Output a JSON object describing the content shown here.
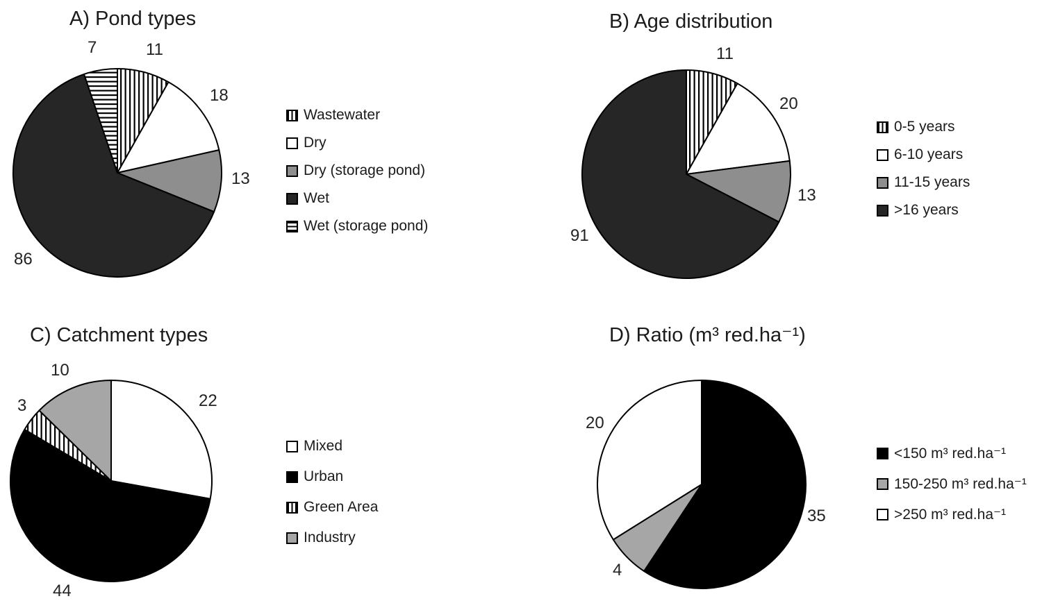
{
  "figure": {
    "background": "#ffffff",
    "stroke_color": "#000000",
    "text_color": "#1b1b1b"
  },
  "chart_data": [
    {
      "type": "pie",
      "panel": "A",
      "title": "A) Pond types",
      "start_angle": "top",
      "direction": "clockwise",
      "legend_position": "right",
      "total": 135,
      "slices": [
        {
          "label": "Wastewater",
          "value": 11,
          "fill": "vstripe"
        },
        {
          "label": "Dry",
          "value": 18,
          "fill": "#ffffff"
        },
        {
          "label": "Dry (storage pond)",
          "value": 13,
          "fill": "#8e8e8e"
        },
        {
          "label": "Wet",
          "value": 86,
          "fill": "#262626"
        },
        {
          "label": "Wet (storage pond)",
          "value": 7,
          "fill": "hstripe"
        }
      ]
    },
    {
      "type": "pie",
      "panel": "B",
      "title": "B) Age distribution",
      "start_angle": "top",
      "direction": "clockwise",
      "legend_position": "right",
      "total": 135,
      "slices": [
        {
          "label": "0-5 years",
          "value": 11,
          "fill": "vstripe"
        },
        {
          "label": "6-10 years",
          "value": 20,
          "fill": "#ffffff"
        },
        {
          "label": "11-15 years",
          "value": 13,
          "fill": "#8e8e8e"
        },
        {
          "label": ">16 years",
          "value": 91,
          "fill": "#262626"
        }
      ]
    },
    {
      "type": "pie",
      "panel": "C",
      "title": "C) Catchment types",
      "start_angle": "top",
      "direction": "clockwise",
      "legend_position": "right",
      "total": 79,
      "slices": [
        {
          "label": "Mixed",
          "value": 22,
          "fill": "#ffffff"
        },
        {
          "label": "Urban",
          "value": 44,
          "fill": "#000000"
        },
        {
          "label": "Green Area",
          "value": 3,
          "fill": "vstripe"
        },
        {
          "label": "Industry",
          "value": 10,
          "fill": "#a6a6a6"
        }
      ]
    },
    {
      "type": "pie",
      "panel": "D",
      "title": "D) Ratio (m³ red.ha⁻¹)",
      "start_angle": "top",
      "direction": "clockwise",
      "legend_position": "right",
      "total": 59,
      "slices": [
        {
          "label": "<150 m³ red.ha⁻¹",
          "value": 35,
          "fill": "#000000"
        },
        {
          "label": "150-250 m³ red.ha⁻¹",
          "value": 4,
          "fill": "#a6a6a6"
        },
        {
          "label": ">250 m³ red.ha⁻¹",
          "value": 20,
          "fill": "#ffffff"
        }
      ]
    }
  ]
}
